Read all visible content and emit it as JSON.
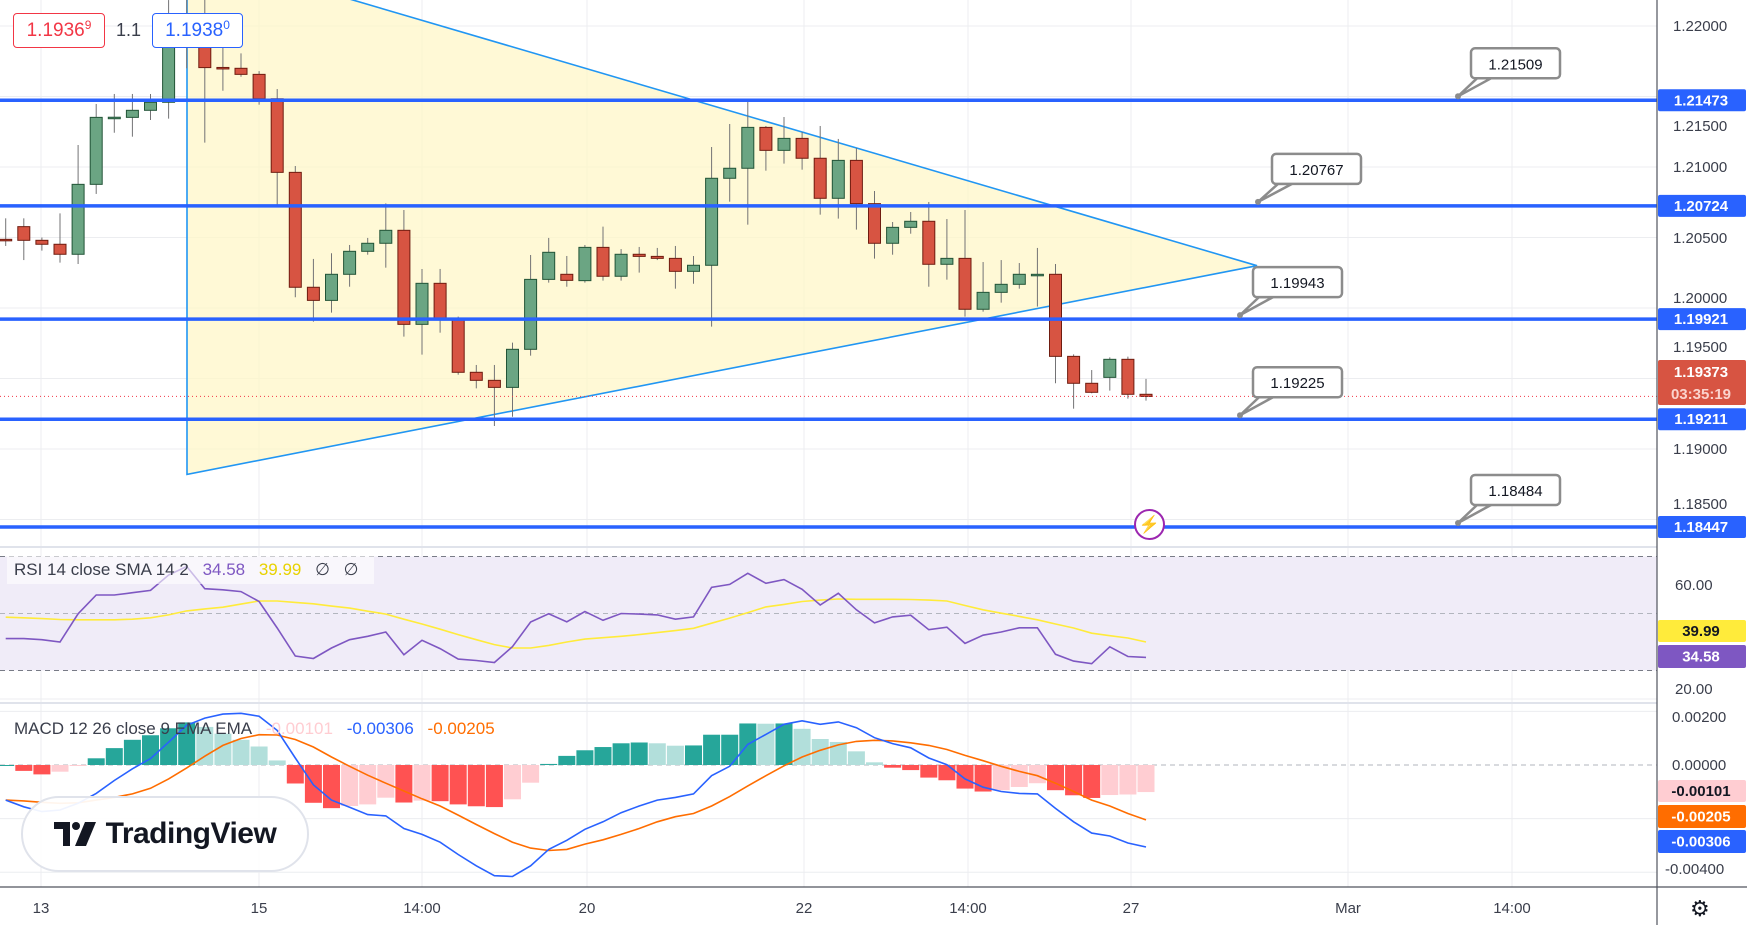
{
  "top_labels": {
    "bid": {
      "main": "1.1936",
      "sup": "9"
    },
    "spread": "1.1",
    "ask": {
      "main": "1.1938",
      "sup": "0"
    }
  },
  "price_axis": {
    "ticks": [
      "1.22000",
      "1.21500",
      "1.21000",
      "1.20500",
      "1.20000",
      "1.19500",
      "1.19000",
      "1.18500"
    ],
    "tick_values": [
      1.22,
      1.215,
      1.21,
      1.205,
      1.2,
      1.195,
      1.19,
      1.185
    ],
    "current_price": "1.19373",
    "countdown": "03:35:19"
  },
  "horizontal_lines": [
    {
      "price": 1.21473,
      "label": "1.21473",
      "callout": "1.21509"
    },
    {
      "price": 1.20724,
      "label": "1.20724",
      "callout": "1.20767"
    },
    {
      "price": 1.19921,
      "label": "1.19921",
      "callout": "1.19943"
    },
    {
      "price": 1.19211,
      "label": "1.19211",
      "callout": "1.19225"
    },
    {
      "price": 1.18447,
      "label": "1.18447",
      "callout": "1.18484"
    }
  ],
  "time_axis": [
    "13",
    "15",
    "14:00",
    "20",
    "22",
    "14:00",
    "27",
    "Mar",
    "14:00"
  ],
  "rsi": {
    "legend": "RSI 14 close SMA 14 2",
    "value": "34.58",
    "sma_value": "39.99",
    "na1": "∅",
    "na2": "∅",
    "ticks": [
      "60.00",
      "20.00"
    ],
    "color": "#7e57c2",
    "sma_color": "#ffeb3b"
  },
  "macd": {
    "legend": "MACD 12 26 close 9 EMA EMA",
    "histogram_value": "-0.00101",
    "macd_value": "-0.00306",
    "signal_value": "-0.00205",
    "ticks": [
      "0.00200",
      "0.00000",
      "-0.00400"
    ],
    "macd_color": "#2962ff",
    "signal_color": "#ff6d00"
  },
  "watermark": "TradingView",
  "colors": {
    "up": "#6ba583",
    "down": "#d75442",
    "level": "#2962ff",
    "trend": "#2196f3"
  },
  "chart_data": {
    "type": "candlestick",
    "symbol_axis_range": [
      1.181,
      1.2218
    ],
    "ohlc": [
      [
        1.20487,
        1.20636,
        1.2044,
        1.20483
      ],
      [
        1.20577,
        1.20636,
        1.2034,
        1.2048
      ],
      [
        1.2048,
        1.205,
        1.20407,
        1.20452
      ],
      [
        1.20452,
        1.20671,
        1.20322,
        1.20381
      ],
      [
        1.20381,
        1.21156,
        1.20312,
        1.20877
      ],
      [
        1.20877,
        1.21447,
        1.20809,
        1.21352
      ],
      [
        1.21352,
        1.21518,
        1.21243,
        1.21353
      ],
      [
        1.21352,
        1.21518,
        1.21215,
        1.21402
      ],
      [
        1.21402,
        1.21518,
        1.21333,
        1.21459
      ],
      [
        1.21459,
        1.22184,
        1.21343,
        1.21924
      ],
      [
        1.21924,
        1.222,
        1.217,
        1.2199
      ],
      [
        1.2199,
        1.22184,
        1.21173,
        1.21705
      ],
      [
        1.21706,
        1.21877,
        1.21541,
        1.21705
      ],
      [
        1.217,
        1.21806,
        1.2164,
        1.21657
      ],
      [
        1.21657,
        1.2168,
        1.21442,
        1.21484
      ],
      [
        1.21484,
        1.21553,
        1.20714,
        1.20962
      ],
      [
        1.20962,
        1.21007,
        1.20076,
        1.20147
      ],
      [
        1.20147,
        1.20348,
        1.19903,
        1.20054
      ],
      [
        1.20054,
        1.20388,
        1.19967,
        1.20239
      ],
      [
        1.20239,
        1.20447,
        1.20151,
        1.20402
      ],
      [
        1.20402,
        1.20497,
        1.20378,
        1.20459
      ],
      [
        1.20459,
        1.20742,
        1.20286,
        1.20551
      ],
      [
        1.20551,
        1.20695,
        1.19797,
        1.19884
      ],
      [
        1.19884,
        1.20277,
        1.19669,
        1.20175
      ],
      [
        1.20175,
        1.20277,
        1.19825,
        1.1992
      ],
      [
        1.1992,
        1.19939,
        1.19527,
        1.19544
      ],
      [
        1.19544,
        1.19596,
        1.1943,
        1.19487
      ],
      [
        1.19487,
        1.19596,
        1.19163,
        1.19437
      ],
      [
        1.19437,
        1.19754,
        1.19229,
        1.19707
      ],
      [
        1.19707,
        1.20376,
        1.19662,
        1.20203
      ],
      [
        1.20203,
        1.20497,
        1.2018,
        1.20395
      ],
      [
        1.20239,
        1.20369,
        1.20151,
        1.20196
      ],
      [
        1.20194,
        1.20447,
        1.2018,
        1.2043
      ],
      [
        1.2043,
        1.20577,
        1.20194,
        1.20225
      ],
      [
        1.20225,
        1.20418,
        1.20194,
        1.20381
      ],
      [
        1.20381,
        1.20433,
        1.20251,
        1.20366
      ],
      [
        1.20366,
        1.20426,
        1.2034,
        1.20352
      ],
      [
        1.20352,
        1.2044,
        1.20137,
        1.2026
      ],
      [
        1.2026,
        1.20369,
        1.20172,
        1.20303
      ],
      [
        1.20303,
        1.21142,
        1.19868,
        1.2092
      ],
      [
        1.2092,
        1.21305,
        1.20754,
        1.20991
      ],
      [
        1.20991,
        1.2147,
        1.20591,
        1.21281
      ],
      [
        1.21281,
        1.21291,
        1.20974,
        1.21118
      ],
      [
        1.21118,
        1.21355,
        1.21024,
        1.21203
      ],
      [
        1.21203,
        1.21248,
        1.20981,
        1.21062
      ],
      [
        1.21062,
        1.21291,
        1.20662,
        1.20778
      ],
      [
        1.20778,
        1.21199,
        1.20634,
        1.21047
      ],
      [
        1.21047,
        1.21135,
        1.20556,
        1.2074
      ],
      [
        1.2074,
        1.2083,
        1.2035,
        1.20459
      ],
      [
        1.20459,
        1.2061,
        1.20378,
        1.20572
      ],
      [
        1.20572,
        1.20681,
        1.20527,
        1.20615
      ],
      [
        1.20615,
        1.20752,
        1.20151,
        1.2031
      ],
      [
        1.2031,
        1.20631,
        1.20201,
        1.20352
      ],
      [
        1.20352,
        1.20695,
        1.19939,
        1.19991
      ],
      [
        1.19991,
        1.20326,
        1.19974,
        1.20111
      ],
      [
        1.20111,
        1.2034,
        1.20038,
        1.20168
      ],
      [
        1.20168,
        1.20319,
        1.20137,
        1.20239
      ],
      [
        1.20238,
        1.20426,
        1.2001,
        1.20239
      ],
      [
        1.20239,
        1.20312,
        1.19466,
        1.19657
      ],
      [
        1.19657,
        1.19671,
        1.19286,
        1.19466
      ],
      [
        1.19466,
        1.1956,
        1.19395,
        1.19402
      ],
      [
        1.19508,
        1.1965,
        1.19414,
        1.19636
      ],
      [
        1.19636,
        1.19655,
        1.19357,
        1.19388
      ],
      [
        1.19388,
        1.19497,
        1.19343,
        1.19373
      ]
    ],
    "triangle": {
      "apex_price": 1.203,
      "top_left_price": 1.2253,
      "bottom_left_price": 1.1882
    },
    "rsi": [
      41.2,
      41.2,
      40.8,
      40.0,
      49.9,
      56.5,
      56.5,
      57.3,
      58.1,
      63.5,
      66.5,
      58.7,
      58.3,
      57.7,
      54.2,
      44.9,
      35.1,
      34.2,
      37.9,
      40.8,
      42.0,
      43.5,
      35.5,
      40.6,
      37.7,
      34.0,
      33.5,
      32.8,
      38.4,
      47.0,
      49.9,
      47.1,
      50.7,
      47.6,
      50.0,
      49.8,
      49.5,
      48.0,
      48.8,
      59.2,
      60.2,
      64.1,
      60.6,
      61.9,
      58.5,
      53.0,
      57.1,
      51.3,
      46.7,
      48.8,
      49.4,
      44.3,
      45.2,
      39.5,
      42.4,
      43.5,
      45.0,
      45.0,
      35.7,
      33.3,
      32.4,
      38.3,
      34.9,
      34.58
    ],
    "rsi_sma": [
      48.7,
      48.5,
      48.2,
      47.9,
      47.8,
      47.8,
      47.8,
      48.0,
      48.5,
      49.5,
      50.9,
      51.6,
      52.2,
      53.3,
      54.4,
      54.4,
      53.9,
      53.4,
      52.6,
      51.9,
      50.8,
      49.8,
      48.0,
      46.3,
      44.5,
      42.6,
      40.8,
      39.1,
      37.9,
      37.9,
      38.8,
      40.0,
      41.0,
      41.5,
      42.0,
      42.6,
      43.3,
      44.0,
      44.8,
      46.6,
      48.4,
      50.3,
      52.3,
      53.2,
      54.2,
      54.7,
      55.1,
      55.0,
      55.0,
      55.0,
      54.9,
      54.7,
      54.4,
      52.8,
      51.3,
      50.1,
      49.0,
      47.8,
      46.3,
      44.9,
      43.1,
      42.2,
      41.4,
      39.99
    ],
    "rsi_levels": [
      70,
      50,
      30
    ],
    "macd": [
      -0.00131,
      -0.00156,
      -0.00174,
      -0.00168,
      -0.00143,
      -0.00106,
      -0.00058,
      -0.00014,
      0.00024,
      0.00085,
      0.00148,
      0.00175,
      0.0019,
      0.00193,
      0.00182,
      0.00129,
      0.00026,
      -0.00074,
      -0.00131,
      -0.00158,
      -0.00185,
      -0.0019,
      -0.00237,
      -0.00259,
      -0.00288,
      -0.00334,
      -0.00376,
      -0.00413,
      -0.00416,
      -0.00376,
      -0.00315,
      -0.00281,
      -0.0024,
      -0.00212,
      -0.00178,
      -0.00153,
      -0.00131,
      -0.00121,
      -0.00108,
      -0.0004,
      -5e-05,
      0.00077,
      0.00114,
      0.00152,
      0.00165,
      0.00152,
      0.00161,
      0.00139,
      0.00102,
      0.0008,
      0.00064,
      0.00026,
      1e-05,
      -0.00052,
      -0.00083,
      -0.00099,
      -0.00106,
      -0.00108,
      -0.00162,
      -0.00212,
      -0.00254,
      -0.00265,
      -0.00291,
      -0.00306
    ],
    "signal": [
      -0.00131,
      -0.00134,
      -0.00139,
      -0.00143,
      -0.00141,
      -0.00131,
      -0.00121,
      -0.00108,
      -0.00087,
      -0.00052,
      -0.00011,
      0.00033,
      0.00073,
      0.00099,
      0.00113,
      0.00112,
      0.00095,
      0.00067,
      0.0003,
      -5e-05,
      -0.00038,
      -0.00068,
      -0.00097,
      -0.00126,
      -0.00153,
      -0.00187,
      -0.00222,
      -0.00256,
      -0.00288,
      -0.0031,
      -0.00319,
      -0.00315,
      -0.00295,
      -0.00279,
      -0.00259,
      -0.00237,
      -0.00212,
      -0.00193,
      -0.00181,
      -0.00153,
      -0.00118,
      -0.00078,
      -0.0004,
      -3e-05,
      0.0003,
      0.00055,
      0.00075,
      0.00088,
      0.00092,
      0.0009,
      0.00083,
      0.00073,
      0.00058,
      0.00036,
      0.00016,
      -5e-05,
      -0.00024,
      -0.0004,
      -0.00068,
      -0.00099,
      -0.00131,
      -0.00153,
      -0.00181,
      -0.00205
    ]
  }
}
